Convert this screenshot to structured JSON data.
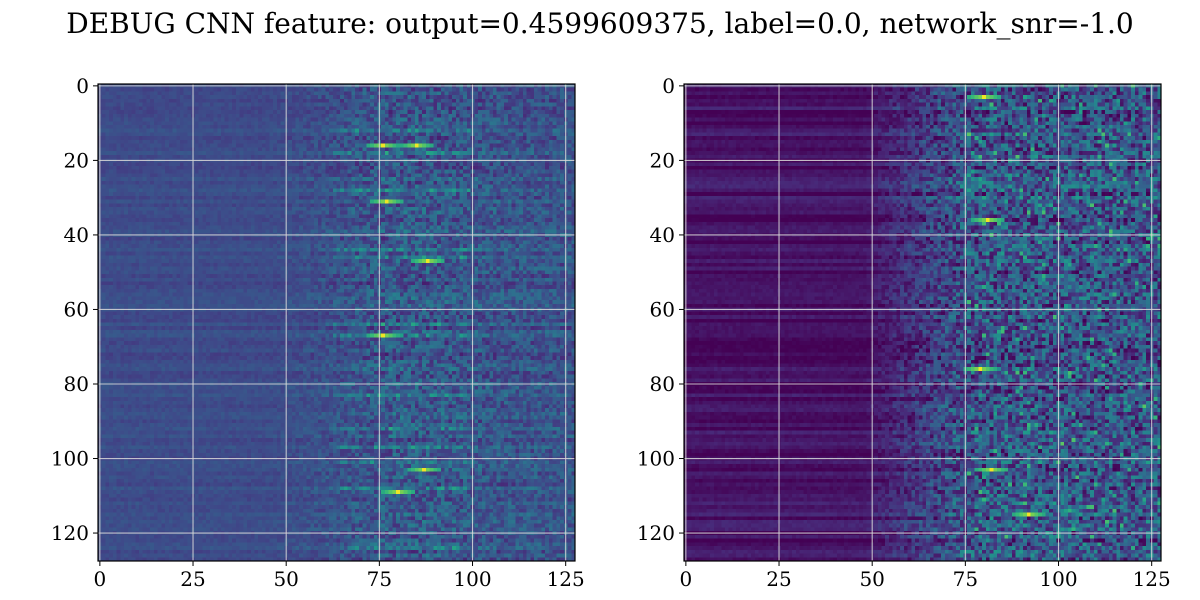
{
  "figure": {
    "title": "DEBUG CNN feature: output=0.4599609375, label=0.0, network_snr=-1.0"
  },
  "chart_data": [
    {
      "type": "heatmap",
      "title": "",
      "xlabel": "",
      "ylabel": "",
      "rows": 128,
      "cols": 128,
      "xlim": [
        -0.5,
        127.5
      ],
      "ylim": [
        127.5,
        -0.5
      ],
      "y_inverted": true,
      "colormap": "viridis",
      "grid": true,
      "x_ticks": [
        0,
        25,
        50,
        75,
        100,
        125
      ],
      "y_ticks": [
        0,
        20,
        40,
        60,
        80,
        100,
        120
      ],
      "x_tick_labels": [
        "0",
        "25",
        "50",
        "75",
        "100",
        "125"
      ],
      "y_tick_labels": [
        "0",
        "20",
        "40",
        "60",
        "80",
        "100",
        "120"
      ],
      "bright_spots": [
        [
          76,
          16
        ],
        [
          85,
          16
        ],
        [
          77,
          31
        ],
        [
          88,
          47
        ],
        [
          76,
          67
        ],
        [
          87,
          103
        ],
        [
          80,
          109
        ]
      ]
    },
    {
      "type": "heatmap",
      "title": "",
      "xlabel": "",
      "ylabel": "",
      "rows": 128,
      "cols": 128,
      "xlim": [
        -0.5,
        127.5
      ],
      "ylim": [
        127.5,
        -0.5
      ],
      "y_inverted": true,
      "colormap": "viridis",
      "grid": true,
      "x_ticks": [
        0,
        25,
        50,
        75,
        100,
        125
      ],
      "y_ticks": [
        0,
        20,
        40,
        60,
        80,
        100,
        120
      ],
      "x_tick_labels": [
        "0",
        "25",
        "50",
        "75",
        "100",
        "125"
      ],
      "y_tick_labels": [
        "0",
        "20",
        "40",
        "60",
        "80",
        "100",
        "120"
      ],
      "bright_spots": [
        [
          81,
          36
        ],
        [
          80,
          3
        ],
        [
          79,
          76
        ],
        [
          82,
          103
        ],
        [
          92,
          115
        ]
      ]
    }
  ]
}
